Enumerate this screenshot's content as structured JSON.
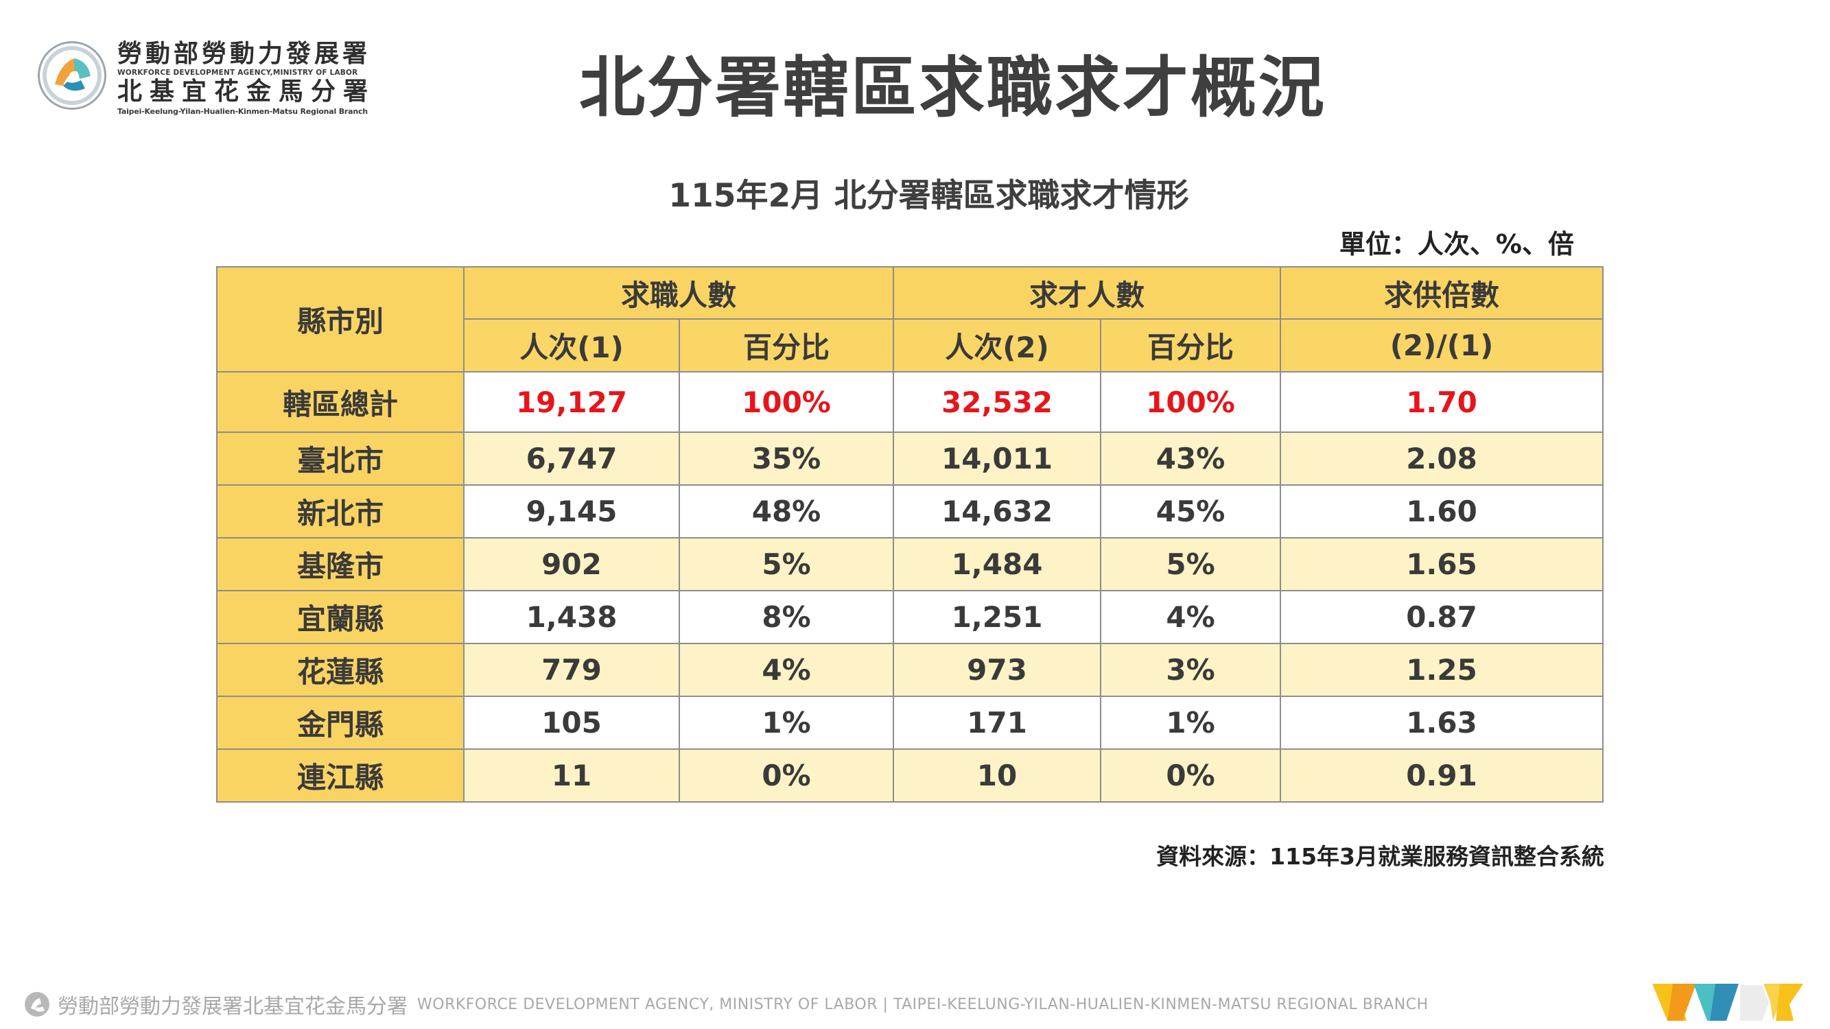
{
  "header": {
    "org_line1": "勞動部勞動力發展署",
    "org_line2": "WORKFORCE DEVELOPMENT AGENCY,MINISTRY OF LABOR",
    "org_line3": "北基宜花金馬分署",
    "org_line4": "Taipei-Keelung-Yilan-Hualien-Kinmen-Matsu Regional Branch",
    "title": "北分署轄區求職求才概況"
  },
  "report": {
    "subtitle": "115年2月 北分署轄區求職求才情形",
    "unit": "單位：人次、%、倍",
    "source": "資料來源：115年3月就業服務資訊整合系統"
  },
  "table": {
    "col_region": "縣市別",
    "group_seekers": "求職人數",
    "group_openings": "求才人數",
    "group_ratio": "求供倍數",
    "sub_seekers_count": "人次(1)",
    "sub_seekers_pct": "百分比",
    "sub_openings_count": "人次(2)",
    "sub_openings_pct": "百分比",
    "sub_ratio": "(2)/(1)",
    "rows": [
      {
        "region": "轄區總計",
        "seekers": "19,127",
        "seekers_pct": "100%",
        "openings": "32,532",
        "openings_pct": "100%",
        "ratio": "1.70"
      },
      {
        "region": "臺北市",
        "seekers": "6,747",
        "seekers_pct": "35%",
        "openings": "14,011",
        "openings_pct": "43%",
        "ratio": "2.08"
      },
      {
        "region": "新北市",
        "seekers": "9,145",
        "seekers_pct": "48%",
        "openings": "14,632",
        "openings_pct": "45%",
        "ratio": "1.60"
      },
      {
        "region": "基隆市",
        "seekers": "902",
        "seekers_pct": "5%",
        "openings": "1,484",
        "openings_pct": "5%",
        "ratio": "1.65"
      },
      {
        "region": "宜蘭縣",
        "seekers": "1,438",
        "seekers_pct": "8%",
        "openings": "1,251",
        "openings_pct": "4%",
        "ratio": "0.87"
      },
      {
        "region": "花蓮縣",
        "seekers": "779",
        "seekers_pct": "4%",
        "openings": "973",
        "openings_pct": "3%",
        "ratio": "1.25"
      },
      {
        "region": "金門縣",
        "seekers": "105",
        "seekers_pct": "1%",
        "openings": "171",
        "openings_pct": "1%",
        "ratio": "1.63"
      },
      {
        "region": "連江縣",
        "seekers": "11",
        "seekers_pct": "0%",
        "openings": "10",
        "openings_pct": "0%",
        "ratio": "0.91"
      }
    ]
  },
  "footer": {
    "zh": "勞動部勞動力發展署北基宜花金馬分署",
    "en": "WORKFORCE DEVELOPMENT AGENCY, MINISTRY OF LABOR  |  TAIPEI-KEELUNG-YILAN-HUALIEN-KINMEN-MATSU REGIONAL BRANCH"
  },
  "colors": {
    "header_fill": "#f9d463",
    "stripe_fill": "#fdf3c6",
    "total_text": "#e8141b",
    "text": "#3a3a3a"
  },
  "icons": {
    "logo": "agency-emblem-icon",
    "footer_left": "agency-small-logo-icon",
    "footer_right": "brand-mark-icon"
  }
}
